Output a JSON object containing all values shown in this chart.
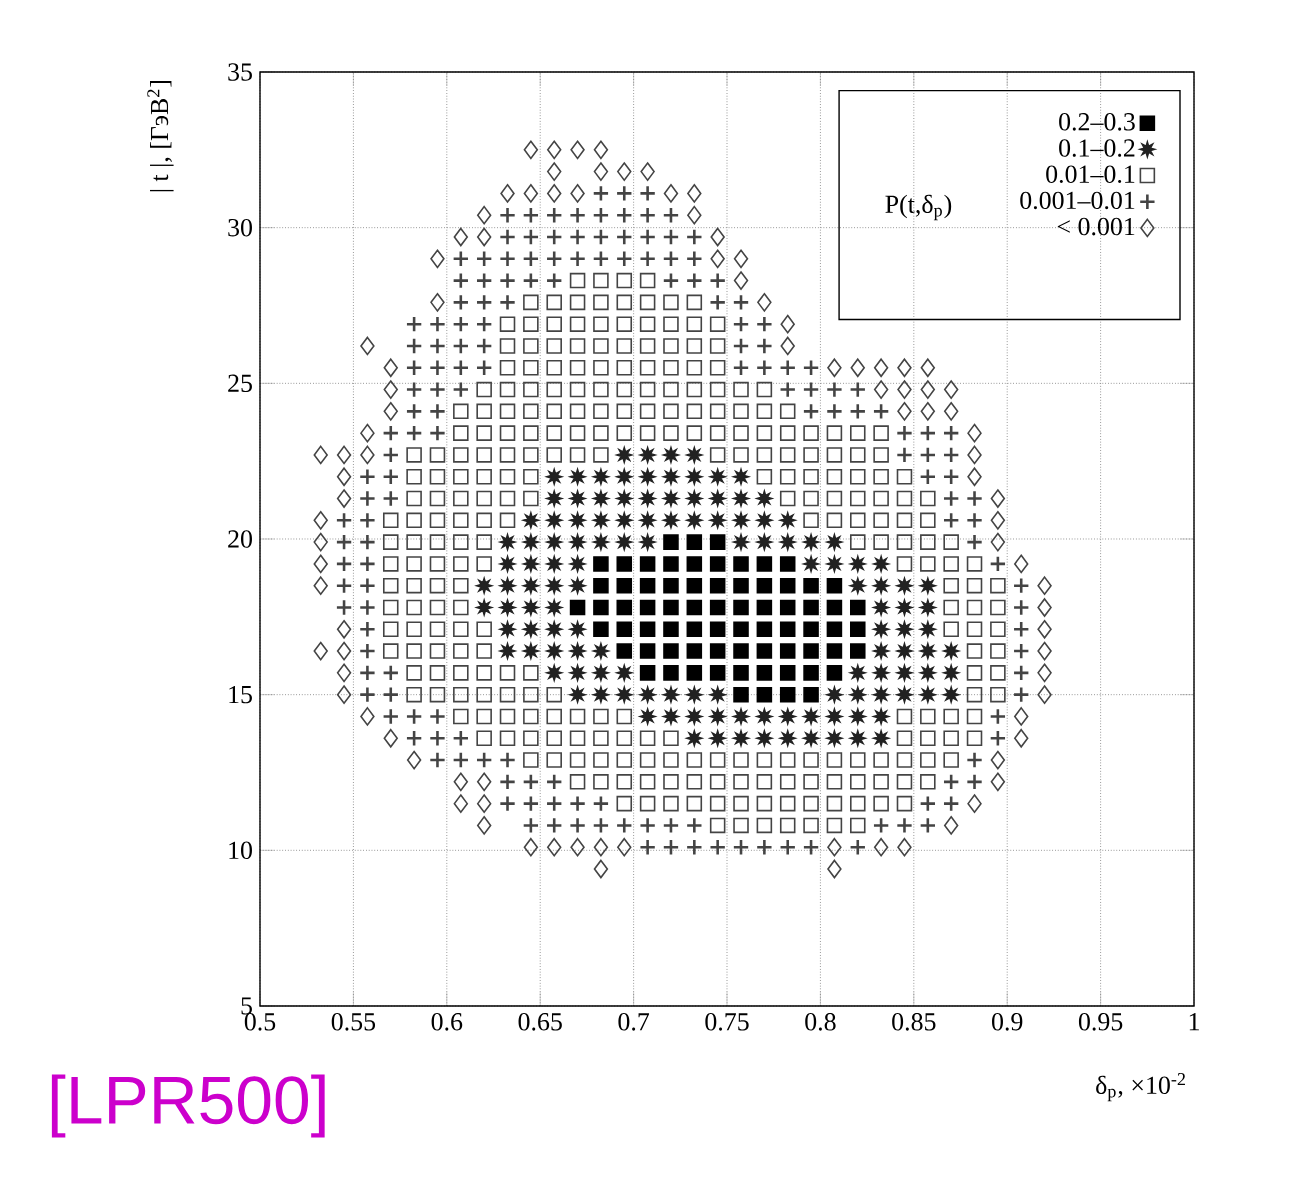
{
  "chart_data": {
    "type": "scatter",
    "xlabel": "δ$_{p}$, ×10$^{-2}$",
    "ylabel": "| t |, [ГэВ$^{2}$]",
    "legend_title": "P(t,δ$_{p}$)",
    "annotations": [
      "[LPR500]"
    ],
    "xlim": [
      0.5,
      1
    ],
    "ylim": [
      5,
      35
    ],
    "xticks": [
      0.5,
      0.55,
      0.6,
      0.65,
      0.7,
      0.75,
      0.8,
      0.85,
      0.9,
      0.95,
      1
    ],
    "yticks": [
      5,
      10,
      15,
      20,
      25,
      30,
      35
    ],
    "grid": true,
    "legend": "top right",
    "series": [
      {
        "name": "0.2–0.3",
        "color": "#000000",
        "marker": "square",
        "x": [
          0.72,
          0.7325,
          0.745,
          0.6825,
          0.695,
          0.7075,
          0.72,
          0.7325,
          0.745,
          0.7575,
          0.77,
          0.7825,
          0.6825,
          0.695,
          0.7075,
          0.72,
          0.7325,
          0.745,
          0.7575,
          0.77,
          0.7825,
          0.795,
          0.8075,
          0.67,
          0.6825,
          0.695,
          0.7075,
          0.72,
          0.7325,
          0.745,
          0.7575,
          0.77,
          0.7825,
          0.795,
          0.8075,
          0.82,
          0.6825,
          0.695,
          0.7075,
          0.72,
          0.7325,
          0.745,
          0.7575,
          0.77,
          0.7825,
          0.795,
          0.8075,
          0.82,
          0.695,
          0.7075,
          0.72,
          0.7325,
          0.745,
          0.7575,
          0.77,
          0.7825,
          0.795,
          0.8075,
          0.82,
          0.7075,
          0.72,
          0.7325,
          0.745,
          0.7575,
          0.77,
          0.7825,
          0.795,
          0.8075,
          0.7575,
          0.77,
          0.7825,
          0.795
        ],
        "values": [
          19.9,
          19.9,
          19.9,
          19.2,
          19.2,
          19.2,
          19.2,
          19.2,
          19.2,
          19.2,
          19.2,
          19.2,
          18.5,
          18.5,
          18.5,
          18.5,
          18.5,
          18.5,
          18.5,
          18.5,
          18.5,
          18.5,
          18.5,
          17.8,
          17.8,
          17.8,
          17.8,
          17.8,
          17.8,
          17.8,
          17.8,
          17.8,
          17.8,
          17.8,
          17.8,
          17.8,
          17.1,
          17.1,
          17.1,
          17.1,
          17.1,
          17.1,
          17.1,
          17.1,
          17.1,
          17.1,
          17.1,
          17.1,
          16.4,
          16.4,
          16.4,
          16.4,
          16.4,
          16.4,
          16.4,
          16.4,
          16.4,
          16.4,
          16.4,
          15.7,
          15.7,
          15.7,
          15.7,
          15.7,
          15.7,
          15.7,
          15.7,
          15.7,
          15,
          15,
          15,
          15
        ]
      },
      {
        "name": "0.1–0.2",
        "color": "#222222",
        "marker": "star",
        "x": [
          0.695,
          0.7075,
          0.72,
          0.7325,
          0.6575,
          0.67,
          0.6825,
          0.695,
          0.7075,
          0.72,
          0.7325,
          0.745,
          0.7575,
          0.6575,
          0.67,
          0.6825,
          0.695,
          0.7075,
          0.72,
          0.7325,
          0.745,
          0.7575,
          0.77,
          0.645,
          0.6575,
          0.67,
          0.6825,
          0.695,
          0.7075,
          0.72,
          0.7325,
          0.745,
          0.7575,
          0.77,
          0.7825,
          0.6325,
          0.645,
          0.6575,
          0.67,
          0.6825,
          0.695,
          0.7075,
          0.7575,
          0.77,
          0.7825,
          0.795,
          0.8075,
          0.6325,
          0.645,
          0.6575,
          0.67,
          0.795,
          0.8075,
          0.82,
          0.8325,
          0.62,
          0.6325,
          0.645,
          0.6575,
          0.67,
          0.82,
          0.8325,
          0.845,
          0.8575,
          0.62,
          0.6325,
          0.645,
          0.6575,
          0.8325,
          0.845,
          0.8575,
          0.6325,
          0.645,
          0.6575,
          0.67,
          0.8325,
          0.845,
          0.8575,
          0.6325,
          0.645,
          0.6575,
          0.67,
          0.6825,
          0.8325,
          0.845,
          0.8575,
          0.87,
          0.6575,
          0.67,
          0.6825,
          0.695,
          0.82,
          0.8325,
          0.845,
          0.8575,
          0.87,
          0.67,
          0.6825,
          0.695,
          0.7075,
          0.72,
          0.7325,
          0.745,
          0.8075,
          0.82,
          0.8325,
          0.845,
          0.8575,
          0.87,
          0.7075,
          0.72,
          0.7325,
          0.745,
          0.7575,
          0.77,
          0.7825,
          0.795,
          0.8075,
          0.82,
          0.8325,
          0.7325,
          0.745,
          0.7575,
          0.77,
          0.7825,
          0.795,
          0.8075,
          0.82,
          0.8325
        ],
        "values": [
          22.7,
          22.7,
          22.7,
          22.7,
          22,
          22,
          22,
          22,
          22,
          22,
          22,
          22,
          22,
          21.3,
          21.3,
          21.3,
          21.3,
          21.3,
          21.3,
          21.3,
          21.3,
          21.3,
          21.3,
          20.6,
          20.6,
          20.6,
          20.6,
          20.6,
          20.6,
          20.6,
          20.6,
          20.6,
          20.6,
          20.6,
          20.6,
          19.9,
          19.9,
          19.9,
          19.9,
          19.9,
          19.9,
          19.9,
          19.9,
          19.9,
          19.9,
          19.9,
          19.9,
          19.2,
          19.2,
          19.2,
          19.2,
          19.2,
          19.2,
          19.2,
          19.2,
          18.5,
          18.5,
          18.5,
          18.5,
          18.5,
          18.5,
          18.5,
          18.5,
          18.5,
          17.8,
          17.8,
          17.8,
          17.8,
          17.8,
          17.8,
          17.8,
          17.1,
          17.1,
          17.1,
          17.1,
          17.1,
          17.1,
          17.1,
          16.4,
          16.4,
          16.4,
          16.4,
          16.4,
          16.4,
          16.4,
          16.4,
          16.4,
          15.7,
          15.7,
          15.7,
          15.7,
          15.7,
          15.7,
          15.7,
          15.7,
          15.7,
          15,
          15,
          15,
          15,
          15,
          15,
          15,
          15,
          15,
          15,
          15,
          15,
          15,
          14.3,
          14.3,
          14.3,
          14.3,
          14.3,
          14.3,
          14.3,
          14.3,
          14.3,
          14.3,
          14.3,
          13.6,
          13.6,
          13.6,
          13.6,
          13.6,
          13.6,
          13.6,
          13.6,
          13.6
        ]
      },
      {
        "name": "0.01–0.1",
        "color": "#444444",
        "marker": "square",
        "x": [
          0.67,
          0.6825,
          0.695,
          0.7075,
          0.645,
          0.6575,
          0.67,
          0.6825,
          0.695,
          0.7075,
          0.72,
          0.7325,
          0.6325,
          0.645,
          0.6575,
          0.67,
          0.6825,
          0.695,
          0.7075,
          0.72,
          0.7325,
          0.745,
          0.6325,
          0.645,
          0.6575,
          0.67,
          0.6825,
          0.695,
          0.7075,
          0.72,
          0.7325,
          0.745,
          0.6325,
          0.645,
          0.6575,
          0.67,
          0.6825,
          0.695,
          0.7075,
          0.72,
          0.7325,
          0.745,
          0.62,
          0.6325,
          0.645,
          0.6575,
          0.67,
          0.6825,
          0.695,
          0.7075,
          0.72,
          0.7325,
          0.745,
          0.7575,
          0.77,
          0.6075,
          0.62,
          0.6325,
          0.645,
          0.6575,
          0.67,
          0.6825,
          0.695,
          0.7075,
          0.72,
          0.7325,
          0.745,
          0.7575,
          0.77,
          0.7825,
          0.6075,
          0.62,
          0.6325,
          0.645,
          0.6575,
          0.67,
          0.6825,
          0.695,
          0.7075,
          0.72,
          0.7325,
          0.745,
          0.7575,
          0.77,
          0.7825,
          0.795,
          0.8075,
          0.82,
          0.8325,
          0.5825,
          0.595,
          0.6075,
          0.62,
          0.6325,
          0.645,
          0.6575,
          0.67,
          0.6825,
          0.745,
          0.7575,
          0.77,
          0.7825,
          0.795,
          0.8075,
          0.82,
          0.8325,
          0.5825,
          0.595,
          0.6075,
          0.62,
          0.6325,
          0.645,
          0.77,
          0.7825,
          0.795,
          0.8075,
          0.82,
          0.8325,
          0.845,
          0.5825,
          0.595,
          0.6075,
          0.62,
          0.6325,
          0.645,
          0.7825,
          0.795,
          0.8075,
          0.82,
          0.8325,
          0.845,
          0.8575,
          0.57,
          0.5825,
          0.595,
          0.6075,
          0.62,
          0.6325,
          0.795,
          0.8075,
          0.82,
          0.8325,
          0.845,
          0.8575,
          0.57,
          0.5825,
          0.595,
          0.6075,
          0.62,
          0.82,
          0.8325,
          0.845,
          0.8575,
          0.87,
          0.57,
          0.5825,
          0.595,
          0.6075,
          0.62,
          0.845,
          0.8575,
          0.87,
          0.8825,
          0.57,
          0.5825,
          0.595,
          0.6075,
          0.87,
          0.8825,
          0.895,
          0.57,
          0.5825,
          0.595,
          0.6075,
          0.87,
          0.8825,
          0.895,
          0.57,
          0.5825,
          0.595,
          0.6075,
          0.62,
          0.87,
          0.8825,
          0.895,
          0.57,
          0.5825,
          0.595,
          0.6075,
          0.62,
          0.8825,
          0.895,
          0.5825,
          0.595,
          0.6075,
          0.62,
          0.6325,
          0.645,
          0.8825,
          0.895,
          0.5825,
          0.595,
          0.6075,
          0.62,
          0.6325,
          0.645,
          0.6575,
          0.8825,
          0.895,
          0.6075,
          0.62,
          0.6325,
          0.645,
          0.6575,
          0.67,
          0.6825,
          0.695,
          0.845,
          0.8575,
          0.87,
          0.8825,
          0.62,
          0.6325,
          0.645,
          0.6575,
          0.67,
          0.6825,
          0.695,
          0.7075,
          0.72,
          0.845,
          0.8575,
          0.87,
          0.8825,
          0.645,
          0.6575,
          0.67,
          0.6825,
          0.695,
          0.7075,
          0.72,
          0.7325,
          0.745,
          0.7575,
          0.77,
          0.7825,
          0.795,
          0.8075,
          0.82,
          0.8325,
          0.845,
          0.8575,
          0.87,
          0.67,
          0.6825,
          0.695,
          0.7075,
          0.72,
          0.7325,
          0.745,
          0.7575,
          0.77,
          0.7825,
          0.795,
          0.8075,
          0.82,
          0.8325,
          0.845,
          0.8575,
          0.695,
          0.7075,
          0.72,
          0.7325,
          0.745,
          0.7575,
          0.77,
          0.7825,
          0.795,
          0.8075,
          0.82,
          0.8325,
          0.845,
          0.745,
          0.7575,
          0.77,
          0.7825,
          0.795,
          0.8075,
          0.82
        ],
        "values": [
          28.3,
          28.3,
          28.3,
          28.3,
          27.6,
          27.6,
          27.6,
          27.6,
          27.6,
          27.6,
          27.6,
          27.6,
          26.9,
          26.9,
          26.9,
          26.9,
          26.9,
          26.9,
          26.9,
          26.9,
          26.9,
          26.9,
          26.2,
          26.2,
          26.2,
          26.2,
          26.2,
          26.2,
          26.2,
          26.2,
          26.2,
          26.2,
          25.5,
          25.5,
          25.5,
          25.5,
          25.5,
          25.5,
          25.5,
          25.5,
          25.5,
          25.5,
          24.8,
          24.8,
          24.8,
          24.8,
          24.8,
          24.8,
          24.8,
          24.8,
          24.8,
          24.8,
          24.8,
          24.8,
          24.8,
          24.1,
          24.1,
          24.1,
          24.1,
          24.1,
          24.1,
          24.1,
          24.1,
          24.1,
          24.1,
          24.1,
          24.1,
          24.1,
          24.1,
          24.1,
          23.4,
          23.4,
          23.4,
          23.4,
          23.4,
          23.4,
          23.4,
          23.4,
          23.4,
          23.4,
          23.4,
          23.4,
          23.4,
          23.4,
          23.4,
          23.4,
          23.4,
          23.4,
          23.4,
          22.7,
          22.7,
          22.7,
          22.7,
          22.7,
          22.7,
          22.7,
          22.7,
          22.7,
          22.7,
          22.7,
          22.7,
          22.7,
          22.7,
          22.7,
          22.7,
          22.7,
          22,
          22,
          22,
          22,
          22,
          22,
          22,
          22,
          22,
          22,
          22,
          22,
          22,
          21.3,
          21.3,
          21.3,
          21.3,
          21.3,
          21.3,
          21.3,
          21.3,
          21.3,
          21.3,
          21.3,
          21.3,
          21.3,
          20.6,
          20.6,
          20.6,
          20.6,
          20.6,
          20.6,
          20.6,
          20.6,
          20.6,
          20.6,
          20.6,
          20.6,
          19.9,
          19.9,
          19.9,
          19.9,
          19.9,
          19.9,
          19.9,
          19.9,
          19.9,
          19.9,
          19.2,
          19.2,
          19.2,
          19.2,
          19.2,
          19.2,
          19.2,
          19.2,
          19.2,
          18.5,
          18.5,
          18.5,
          18.5,
          18.5,
          18.5,
          18.5,
          17.8,
          17.8,
          17.8,
          17.8,
          17.8,
          17.8,
          17.8,
          17.1,
          17.1,
          17.1,
          17.1,
          17.1,
          17.1,
          17.1,
          17.1,
          16.4,
          16.4,
          16.4,
          16.4,
          16.4,
          16.4,
          16.4,
          15.7,
          15.7,
          15.7,
          15.7,
          15.7,
          15.7,
          15.7,
          15.7,
          15,
          15,
          15,
          15,
          15,
          15,
          15,
          15,
          15,
          14.3,
          14.3,
          14.3,
          14.3,
          14.3,
          14.3,
          14.3,
          14.3,
          14.3,
          14.3,
          14.3,
          14.3,
          13.6,
          13.6,
          13.6,
          13.6,
          13.6,
          13.6,
          13.6,
          13.6,
          13.6,
          13.6,
          13.6,
          13.6,
          13.6,
          12.9,
          12.9,
          12.9,
          12.9,
          12.9,
          12.9,
          12.9,
          12.9,
          12.9,
          12.9,
          12.9,
          12.9,
          12.9,
          12.9,
          12.9,
          12.9,
          12.9,
          12.9,
          12.9,
          12.2,
          12.2,
          12.2,
          12.2,
          12.2,
          12.2,
          12.2,
          12.2,
          12.2,
          12.2,
          12.2,
          12.2,
          12.2,
          12.2,
          12.2,
          12.2,
          11.5,
          11.5,
          11.5,
          11.5,
          11.5,
          11.5,
          11.5,
          11.5,
          11.5,
          11.5,
          11.5,
          11.5,
          11.5,
          10.8,
          10.8,
          10.8,
          10.8,
          10.8,
          10.8,
          10.8
        ]
      },
      {
        "name": "0.001–0.01",
        "color": "#444444",
        "marker": "cross",
        "x": [
          0.6825,
          0.695,
          0.7075,
          0.6325,
          0.645,
          0.6575,
          0.67,
          0.6825,
          0.695,
          0.7075,
          0.72,
          0.6325,
          0.645,
          0.6575,
          0.67,
          0.6825,
          0.695,
          0.7075,
          0.72,
          0.7325,
          0.6075,
          0.62,
          0.6325,
          0.645,
          0.6575,
          0.67,
          0.6825,
          0.695,
          0.7075,
          0.72,
          0.7325,
          0.6075,
          0.62,
          0.6325,
          0.645,
          0.6575,
          0.72,
          0.7325,
          0.745,
          0.6075,
          0.62,
          0.6325,
          0.745,
          0.7575,
          0.5825,
          0.595,
          0.6075,
          0.62,
          0.7575,
          0.77,
          0.5825,
          0.595,
          0.6075,
          0.62,
          0.7575,
          0.77,
          0.5825,
          0.595,
          0.6075,
          0.62,
          0.7575,
          0.77,
          0.7825,
          0.795,
          0.5825,
          0.595,
          0.6075,
          0.7825,
          0.795,
          0.8075,
          0.82,
          0.5825,
          0.595,
          0.795,
          0.8075,
          0.82,
          0.8325,
          0.57,
          0.5825,
          0.595,
          0.845,
          0.8575,
          0.87,
          0.57,
          0.845,
          0.8575,
          0.87,
          0.5575,
          0.57,
          0.8575,
          0.87,
          0.5575,
          0.57,
          0.87,
          0.8825,
          0.545,
          0.5575,
          0.87,
          0.8825,
          0.545,
          0.5575,
          0.8825,
          0.545,
          0.5575,
          0.895,
          0.545,
          0.5575,
          0.9075,
          0.545,
          0.5575,
          0.9075,
          0.5575,
          0.9075,
          0.5575,
          0.9075,
          0.5575,
          0.57,
          0.9075,
          0.5575,
          0.57,
          0.9075,
          0.57,
          0.5825,
          0.595,
          0.895,
          0.5825,
          0.595,
          0.6075,
          0.895,
          0.595,
          0.6075,
          0.62,
          0.6325,
          0.8825,
          0.6325,
          0.645,
          0.6575,
          0.87,
          0.8825,
          0.6325,
          0.645,
          0.6575,
          0.67,
          0.6825,
          0.8575,
          0.87,
          0.645,
          0.6575,
          0.67,
          0.6825,
          0.695,
          0.7075,
          0.72,
          0.7325,
          0.8325,
          0.845,
          0.8575,
          0.7075,
          0.72,
          0.7325,
          0.745,
          0.7575,
          0.77,
          0.7825,
          0.795,
          0.82
        ],
        "values": [
          31.1,
          31.1,
          31.1,
          30.4,
          30.4,
          30.4,
          30.4,
          30.4,
          30.4,
          30.4,
          30.4,
          29.7,
          29.7,
          29.7,
          29.7,
          29.7,
          29.7,
          29.7,
          29.7,
          29.7,
          29,
          29,
          29,
          29,
          29,
          29,
          29,
          29,
          29,
          29,
          29,
          28.3,
          28.3,
          28.3,
          28.3,
          28.3,
          28.3,
          28.3,
          28.3,
          27.6,
          27.6,
          27.6,
          27.6,
          27.6,
          26.9,
          26.9,
          26.9,
          26.9,
          26.9,
          26.9,
          26.2,
          26.2,
          26.2,
          26.2,
          26.2,
          26.2,
          25.5,
          25.5,
          25.5,
          25.5,
          25.5,
          25.5,
          25.5,
          25.5,
          24.8,
          24.8,
          24.8,
          24.8,
          24.8,
          24.8,
          24.8,
          24.1,
          24.1,
          24.1,
          24.1,
          24.1,
          24.1,
          23.4,
          23.4,
          23.4,
          23.4,
          23.4,
          23.4,
          22.7,
          22.7,
          22.7,
          22.7,
          22,
          22,
          22,
          22,
          21.3,
          21.3,
          21.3,
          21.3,
          20.6,
          20.6,
          20.6,
          20.6,
          19.9,
          19.9,
          19.9,
          19.2,
          19.2,
          19.2,
          18.5,
          18.5,
          18.5,
          17.8,
          17.8,
          17.8,
          17.1,
          17.1,
          16.4,
          16.4,
          15.7,
          15.7,
          15.7,
          15,
          15,
          15,
          14.3,
          14.3,
          14.3,
          14.3,
          13.6,
          13.6,
          13.6,
          13.6,
          12.9,
          12.9,
          12.9,
          12.9,
          12.9,
          12.2,
          12.2,
          12.2,
          12.2,
          12.2,
          11.5,
          11.5,
          11.5,
          11.5,
          11.5,
          11.5,
          11.5,
          10.8,
          10.8,
          10.8,
          10.8,
          10.8,
          10.8,
          10.8,
          10.8,
          10.8,
          10.8,
          10.8,
          10.1,
          10.1,
          10.1,
          10.1,
          10.1,
          10.1,
          10.1,
          10.1,
          10.1
        ]
      },
      {
        "name": "< 0.001",
        "color": "#444444",
        "marker": "diamond",
        "x": [
          0.645,
          0.6575,
          0.67,
          0.6825,
          0.6575,
          0.6825,
          0.695,
          0.7075,
          0.6325,
          0.645,
          0.6575,
          0.67,
          0.72,
          0.7325,
          0.62,
          0.7325,
          0.6075,
          0.62,
          0.745,
          0.595,
          0.745,
          0.7575,
          0.7575,
          0.595,
          0.77,
          0.7825,
          0.5575,
          0.7825,
          0.57,
          0.8075,
          0.82,
          0.8325,
          0.845,
          0.8575,
          0.57,
          0.8325,
          0.845,
          0.8575,
          0.87,
          0.57,
          0.845,
          0.8575,
          0.87,
          0.5575,
          0.8825,
          0.5325,
          0.545,
          0.5575,
          0.8825,
          0.545,
          0.8825,
          0.545,
          0.895,
          0.5325,
          0.895,
          0.5325,
          0.895,
          0.5325,
          0.9075,
          0.5325,
          0.92,
          0.92,
          0.545,
          0.92,
          0.5325,
          0.545,
          0.92,
          0.545,
          0.92,
          0.545,
          0.92,
          0.5575,
          0.9075,
          0.57,
          0.9075,
          0.5825,
          0.895,
          0.6075,
          0.62,
          0.895,
          0.6075,
          0.62,
          0.8825,
          0.62,
          0.87,
          0.645,
          0.6575,
          0.67,
          0.6825,
          0.695,
          0.8075,
          0.8325,
          0.845,
          0.6825,
          0.8075
        ],
        "values": [
          32.5,
          32.5,
          32.5,
          32.5,
          31.8,
          31.8,
          31.8,
          31.8,
          31.1,
          31.1,
          31.1,
          31.1,
          31.1,
          31.1,
          30.4,
          30.4,
          29.7,
          29.7,
          29.7,
          29,
          29,
          29,
          28.3,
          27.6,
          27.6,
          26.9,
          26.2,
          26.2,
          25.5,
          25.5,
          25.5,
          25.5,
          25.5,
          25.5,
          24.8,
          24.8,
          24.8,
          24.8,
          24.8,
          24.1,
          24.1,
          24.1,
          24.1,
          23.4,
          23.4,
          22.7,
          22.7,
          22.7,
          22.7,
          22,
          22,
          21.3,
          21.3,
          20.6,
          20.6,
          19.9,
          19.9,
          19.2,
          19.2,
          18.5,
          18.5,
          17.8,
          17.1,
          17.1,
          16.4,
          16.4,
          16.4,
          15.7,
          15.7,
          15,
          15,
          14.3,
          14.3,
          13.6,
          13.6,
          12.9,
          12.9,
          12.2,
          12.2,
          12.2,
          11.5,
          11.5,
          11.5,
          10.8,
          10.8,
          10.1,
          10.1,
          10.1,
          10.1,
          10.1,
          10.1,
          10.1,
          10.1,
          9.4,
          9.4
        ]
      }
    ]
  }
}
